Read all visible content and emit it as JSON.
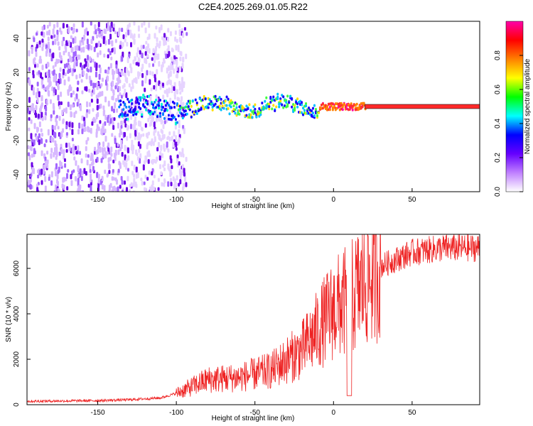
{
  "title": "C2E4.2025.269.01.05.R22",
  "colors": {
    "snr_line": "#ee2222",
    "spec_bg": "#ffffff",
    "band": "#ff2a2a"
  },
  "chart_data": [
    {
      "type": "heatmap",
      "xlabel": "Height of straight line (km)",
      "ylabel": "Frequency (Hz)",
      "xlim": [
        -195,
        93
      ],
      "ylim": [
        -50,
        50
      ],
      "xticks": [
        -150,
        -100,
        -50,
        0,
        50
      ],
      "yticks": [
        -40,
        -20,
        0,
        20,
        40
      ],
      "carrier_freq": 0,
      "noise_upper_limit_km": -100,
      "colorbar": {
        "label": "Normalized spectral amplitude",
        "range": [
          0,
          1
        ],
        "ticks": [
          0.0,
          0.2,
          0.4,
          0.6,
          0.8
        ],
        "colormap": [
          "#ffffff",
          "#c080ff",
          "#6600ff",
          "#0000ff",
          "#00ffff",
          "#00ff00",
          "#ffff00",
          "#ff8000",
          "#ff0000",
          "#ff00aa"
        ]
      }
    },
    {
      "type": "line",
      "xlabel": "Height of straight line (km)",
      "ylabel": "SNR (10 * v/v)",
      "xlim": [
        -195,
        93
      ],
      "ylim": [
        0,
        7500
      ],
      "xticks": [
        -150,
        -100,
        -50,
        0,
        50
      ],
      "yticks": [
        0,
        2000,
        4000,
        6000
      ],
      "trend": [
        {
          "x": -195,
          "y": 150
        },
        {
          "x": -150,
          "y": 180
        },
        {
          "x": -130,
          "y": 220
        },
        {
          "x": -110,
          "y": 300
        },
        {
          "x": -100,
          "y": 500
        },
        {
          "x": -80,
          "y": 1100
        },
        {
          "x": -60,
          "y": 1200
        },
        {
          "x": -40,
          "y": 1500
        },
        {
          "x": -20,
          "y": 2400
        },
        {
          "x": -10,
          "y": 3300
        },
        {
          "x": 0,
          "y": 4200
        },
        {
          "x": 10,
          "y": 4600
        },
        {
          "x": 20,
          "y": 5400
        },
        {
          "x": 30,
          "y": 6100
        },
        {
          "x": 50,
          "y": 6700
        },
        {
          "x": 70,
          "y": 6900
        },
        {
          "x": 93,
          "y": 6900
        }
      ],
      "dip": {
        "x": 10,
        "y": 400
      }
    }
  ]
}
